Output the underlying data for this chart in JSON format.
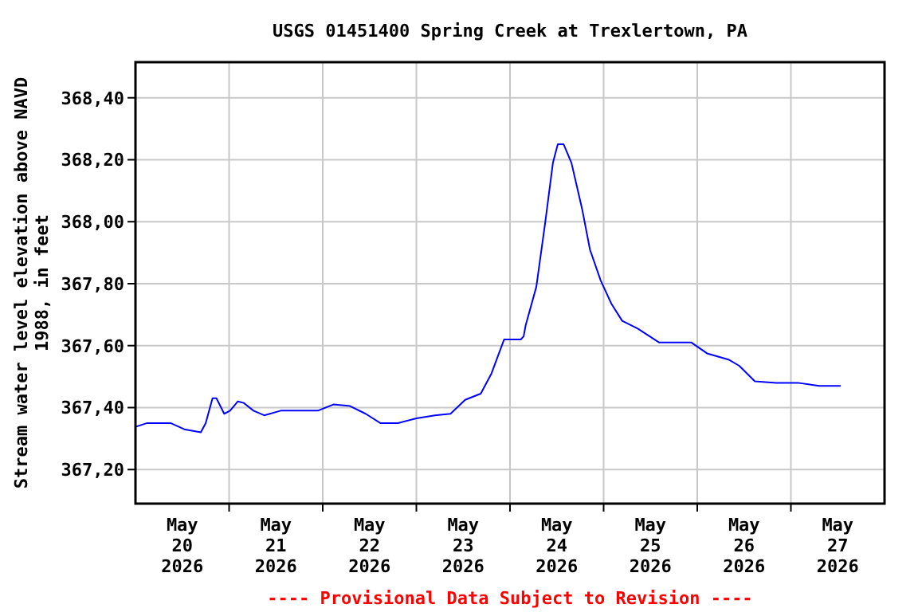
{
  "chart_data": {
    "type": "line",
    "title": "USGS 01451400 Spring Creek at Trexlertown, PA",
    "ylabel": "Stream water level elevation above NAVD 1988, in feet",
    "annotations": [
      "---- Provisional Data Subject to Revision ----"
    ],
    "xlim": [
      "2026-05-20T00:00",
      "2026-05-28T00:00"
    ],
    "xticks": [
      {
        "value": "2026-05-20T12:00",
        "label": "May\n20\n2026"
      },
      {
        "value": "2026-05-21T00:00",
        "label": null
      },
      {
        "value": "2026-05-21T12:00",
        "label": "May\n21\n2026"
      },
      {
        "value": "2026-05-22T00:00",
        "label": null
      },
      {
        "value": "2026-05-22T12:00",
        "label": "May\n22\n2026"
      },
      {
        "value": "2026-05-23T00:00",
        "label": null
      },
      {
        "value": "2026-05-23T12:00",
        "label": "May\n23\n2026"
      },
      {
        "value": "2026-05-24T00:00",
        "label": null
      },
      {
        "value": "2026-05-24T12:00",
        "label": "May\n24\n2026"
      },
      {
        "value": "2026-05-25T00:00",
        "label": null
      },
      {
        "value": "2026-05-25T12:00",
        "label": "May\n25\n2026"
      },
      {
        "value": "2026-05-26T00:00",
        "label": null
      },
      {
        "value": "2026-05-26T12:00",
        "label": "May\n26\n2026"
      },
      {
        "value": "2026-05-27T00:00",
        "label": null
      },
      {
        "value": "2026-05-27T12:00",
        "label": "May\n27\n2026"
      }
    ],
    "ylim": [
      367.09,
      368.515
    ],
    "yticks": [
      {
        "value": 367.2,
        "label": "367,20"
      },
      {
        "value": 367.4,
        "label": "367,40"
      },
      {
        "value": 367.6,
        "label": "367,60"
      },
      {
        "value": 367.8,
        "label": "367,80"
      },
      {
        "value": 368.0,
        "label": "368,00"
      },
      {
        "value": 368.2,
        "label": "368,20"
      },
      {
        "value": 368.4,
        "label": "368,40"
      }
    ],
    "grid": true,
    "line_style": "solid",
    "x": [
      "2026-05-20T00:00",
      "2026-05-20T03:00",
      "2026-05-20T09:00",
      "2026-05-20T12:30",
      "2026-05-20T16:45",
      "2026-05-20T18:00",
      "2026-05-20T19:45",
      "2026-05-20T20:45",
      "2026-05-20T22:45",
      "2026-05-21T00:15",
      "2026-05-21T02:15",
      "2026-05-21T03:45",
      "2026-05-21T06:15",
      "2026-05-21T09:00",
      "2026-05-21T13:15",
      "2026-05-21T22:45",
      "2026-05-22T02:45",
      "2026-05-22T07:00",
      "2026-05-22T11:00",
      "2026-05-22T14:45",
      "2026-05-22T19:15",
      "2026-05-23T00:00",
      "2026-05-23T04:45",
      "2026-05-23T08:45",
      "2026-05-23T12:30",
      "2026-05-23T16:30",
      "2026-05-23T19:15",
      "2026-05-23T22:30",
      "2026-05-24T02:45",
      "2026-05-24T03:30",
      "2026-05-24T04:00",
      "2026-05-24T06:45",
      "2026-05-24T09:00",
      "2026-05-24T11:00",
      "2026-05-24T12:15",
      "2026-05-24T13:45",
      "2026-05-24T15:45",
      "2026-05-24T18:30",
      "2026-05-24T20:30",
      "2026-05-24T23:15",
      "2026-05-25T02:00",
      "2026-05-25T04:45",
      "2026-05-25T08:45",
      "2026-05-25T14:15",
      "2026-05-25T17:00",
      "2026-05-25T22:30",
      "2026-05-26T02:30",
      "2026-05-26T08:00",
      "2026-05-26T10:45",
      "2026-05-26T14:45",
      "2026-05-26T20:15",
      "2026-05-27T01:45",
      "2026-05-27T07:15",
      "2026-05-27T12:45"
    ],
    "series": [
      {
        "color": "#0000ff",
        "values": [
          367.338,
          367.35,
          367.35,
          367.33,
          367.32,
          367.35,
          367.43,
          367.43,
          367.38,
          367.39,
          367.42,
          367.415,
          367.39,
          367.375,
          367.39,
          367.39,
          367.41,
          367.405,
          367.38,
          367.35,
          367.35,
          367.365,
          367.375,
          367.38,
          367.425,
          367.445,
          367.51,
          367.62,
          367.62,
          367.63,
          367.665,
          367.79,
          367.995,
          368.19,
          368.25,
          368.25,
          368.19,
          368.04,
          367.91,
          367.81,
          367.735,
          367.68,
          367.655,
          367.61,
          367.61,
          367.61,
          367.575,
          367.555,
          367.535,
          367.485,
          367.48,
          367.48,
          367.47,
          367.47
        ]
      }
    ]
  }
}
